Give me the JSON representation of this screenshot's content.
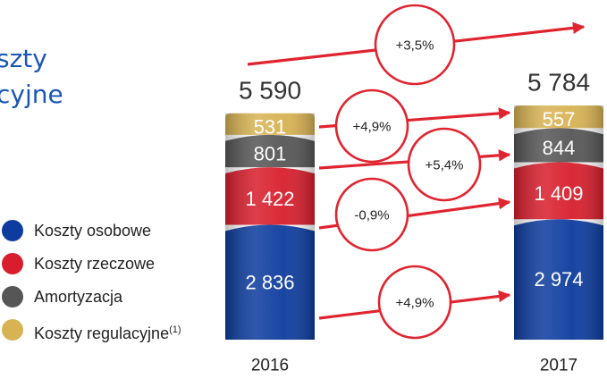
{
  "title": {
    "line1": "szty",
    "line2": "cyjne"
  },
  "colors": {
    "koszty_osobowe": "#0d3c9e",
    "koszty_rzeczowe": "#d81e2c",
    "amortyzacja": "#565656",
    "koszty_regulacyjne": "#d8b354",
    "arrow": "#e0242f"
  },
  "legend": [
    {
      "label": "Koszty osobowe",
      "color": "#0d3c9e"
    },
    {
      "label": "Koszty rzeczowe",
      "color": "#d81e2c"
    },
    {
      "label": "Amortyzacja",
      "color": "#565656"
    },
    {
      "label": "Koszty regulacyjne",
      "sup": "(1)",
      "color": "#d8b354"
    }
  ],
  "chart_data": {
    "type": "bar",
    "stacked": true,
    "categories": [
      "2016",
      "2017"
    ],
    "totals": [
      "5 590",
      "5 784"
    ],
    "series": [
      {
        "name": "Koszty osobowe",
        "values": [
          2836,
          2974
        ],
        "labels": [
          "2 836",
          "2 974"
        ]
      },
      {
        "name": "Koszty rzeczowe",
        "values": [
          1422,
          1409
        ],
        "labels": [
          "1 422",
          "1 409"
        ]
      },
      {
        "name": "Amortyzacja",
        "values": [
          801,
          844
        ],
        "labels": [
          "801",
          "844"
        ]
      },
      {
        "name": "Koszty regulacyjne",
        "values": [
          531,
          557
        ],
        "labels": [
          "531",
          "557"
        ]
      }
    ],
    "changes": [
      {
        "label": "+3,5%",
        "applies_to": "total"
      },
      {
        "label": "+4,9%",
        "applies_to": "Koszty regulacyjne"
      },
      {
        "label": "+5,4%",
        "applies_to": "Amortyzacja"
      },
      {
        "label": "-0,9%",
        "applies_to": "Koszty rzeczowe"
      },
      {
        "label": "+4,9%",
        "applies_to": "Koszty osobowe"
      }
    ]
  }
}
